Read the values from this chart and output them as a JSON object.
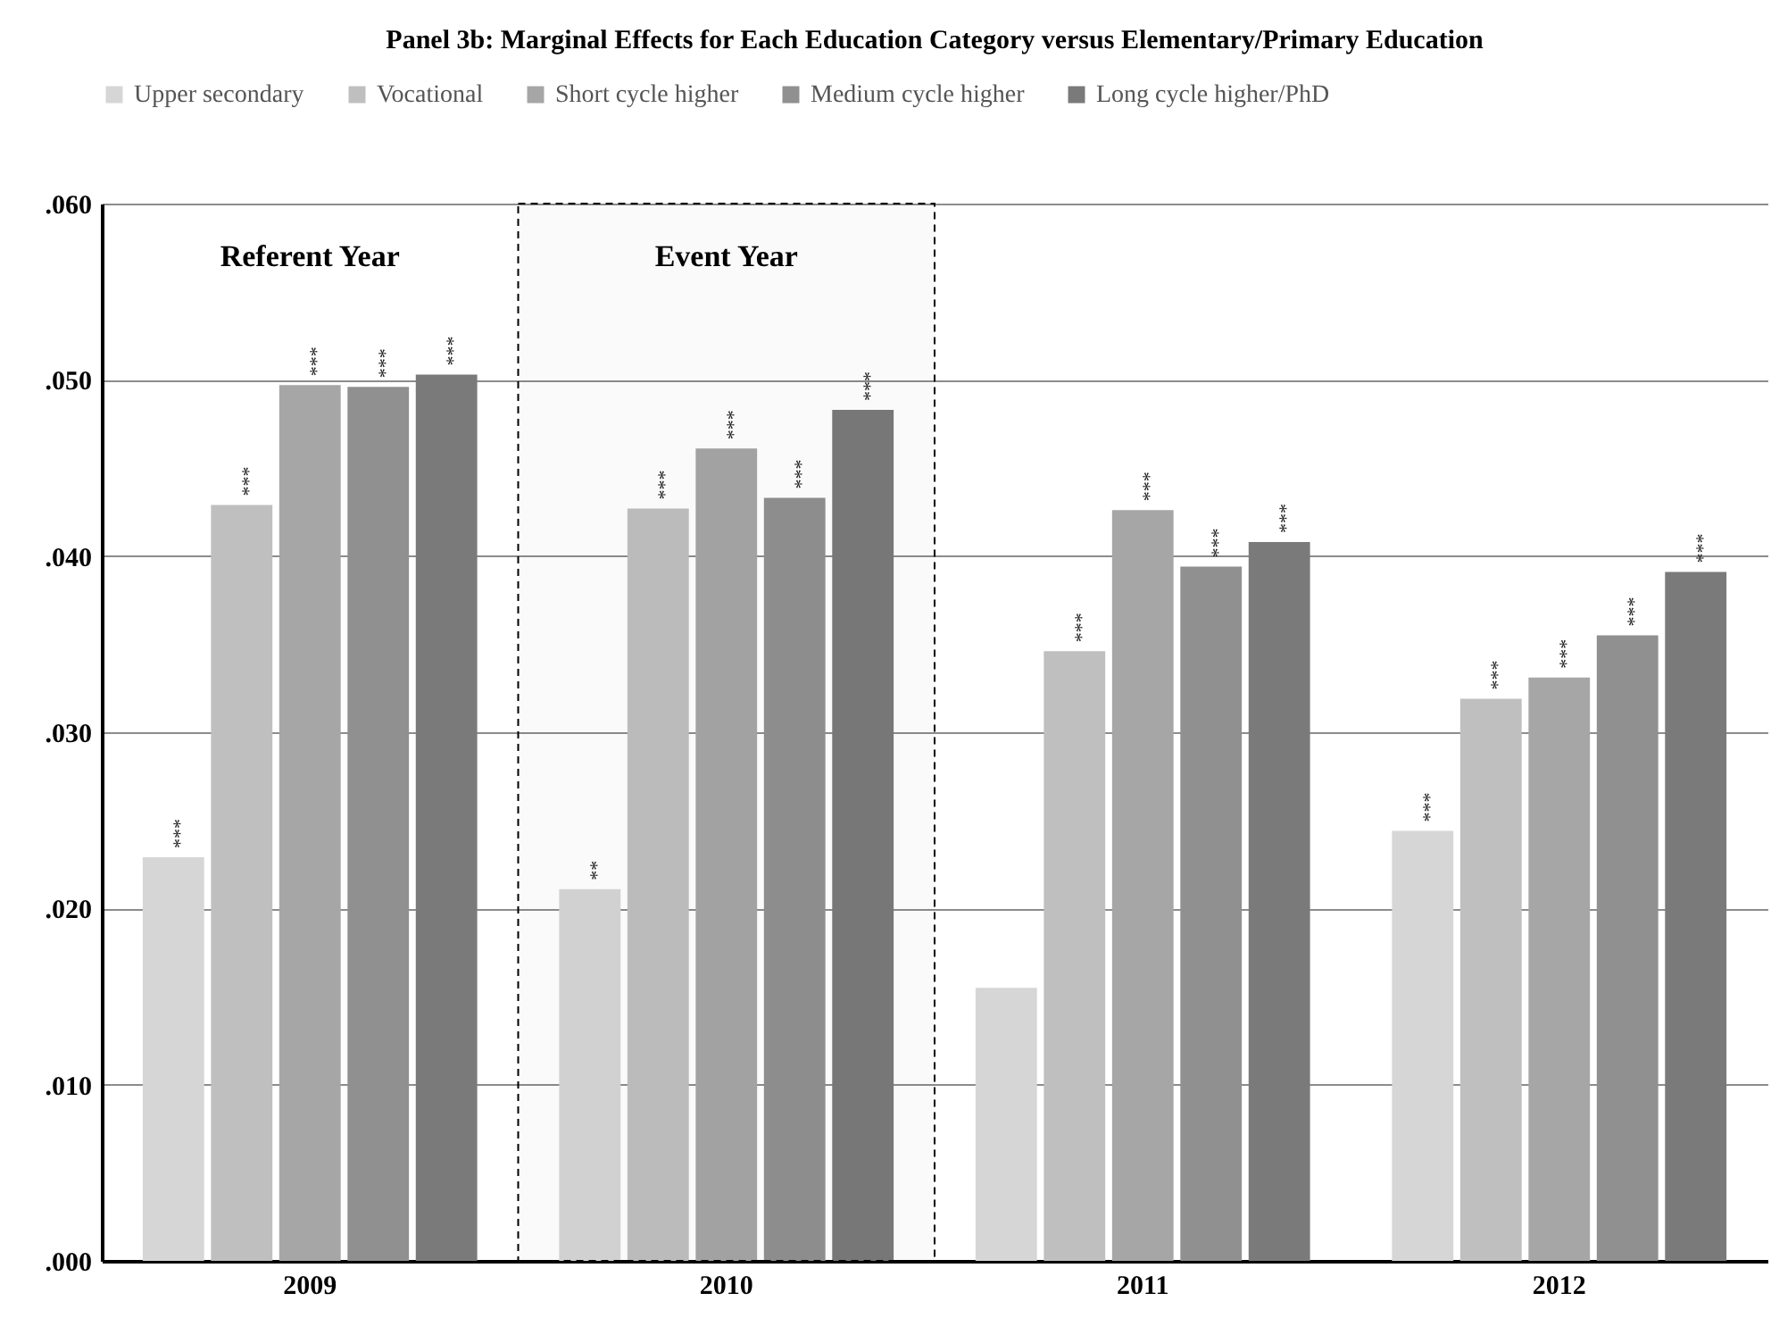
{
  "chart_data": {
    "type": "bar",
    "title": "Panel 3b: Marginal Effects for Each Education Category versus Elementary/Primary Education",
    "categories": [
      "2009",
      "2010",
      "2011",
      "2012"
    ],
    "series": [
      {
        "name": "Upper secondary",
        "color": "#d6d6d6",
        "values": [
          0.0229,
          0.0211,
          0.0155,
          0.0244
        ],
        "value_labels": [
          "***",
          "**",
          null,
          "***"
        ]
      },
      {
        "name": "Vocational",
        "color": "#bfbfbf",
        "values": [
          0.0429,
          0.0427,
          0.0346,
          0.0319
        ],
        "value_labels": [
          "***",
          "***",
          "***",
          "***"
        ]
      },
      {
        "name": "Short cycle higher",
        "color": "#a6a6a6",
        "values": [
          0.0497,
          0.0461,
          0.0426,
          0.0331
        ],
        "value_labels": [
          "***",
          "***",
          "***",
          "***"
        ]
      },
      {
        "name": "Medium cycle higher",
        "color": "#909090",
        "values": [
          0.0496,
          0.0433,
          0.0394,
          0.0355
        ],
        "value_labels": [
          "***",
          "***",
          "***",
          "***"
        ]
      },
      {
        "name": "Long cycle higher/PhD",
        "color": "#7a7a7a",
        "values": [
          0.0503,
          0.0483,
          0.0408,
          0.0391
        ],
        "value_labels": [
          "***",
          "***",
          "***",
          "***"
        ]
      }
    ],
    "ylim": [
      0,
      0.06
    ],
    "yticks": [
      {
        "value": 0,
        "label": ".000"
      },
      {
        "value": 0.01,
        "label": ".010"
      },
      {
        "value": 0.02,
        "label": ".020"
      },
      {
        "value": 0.03,
        "label": ".030"
      },
      {
        "value": 0.04,
        "label": ".040"
      },
      {
        "value": 0.05,
        "label": ".050"
      },
      {
        "value": 0.06,
        "label": ".060"
      }
    ],
    "grid": "y",
    "legend": "top",
    "annotations": [
      "Referent Year",
      "Event Year"
    ],
    "bands": [
      {
        "axis": "x",
        "from": "2010",
        "to": "2010",
        "color": "#000000"
      }
    ]
  }
}
